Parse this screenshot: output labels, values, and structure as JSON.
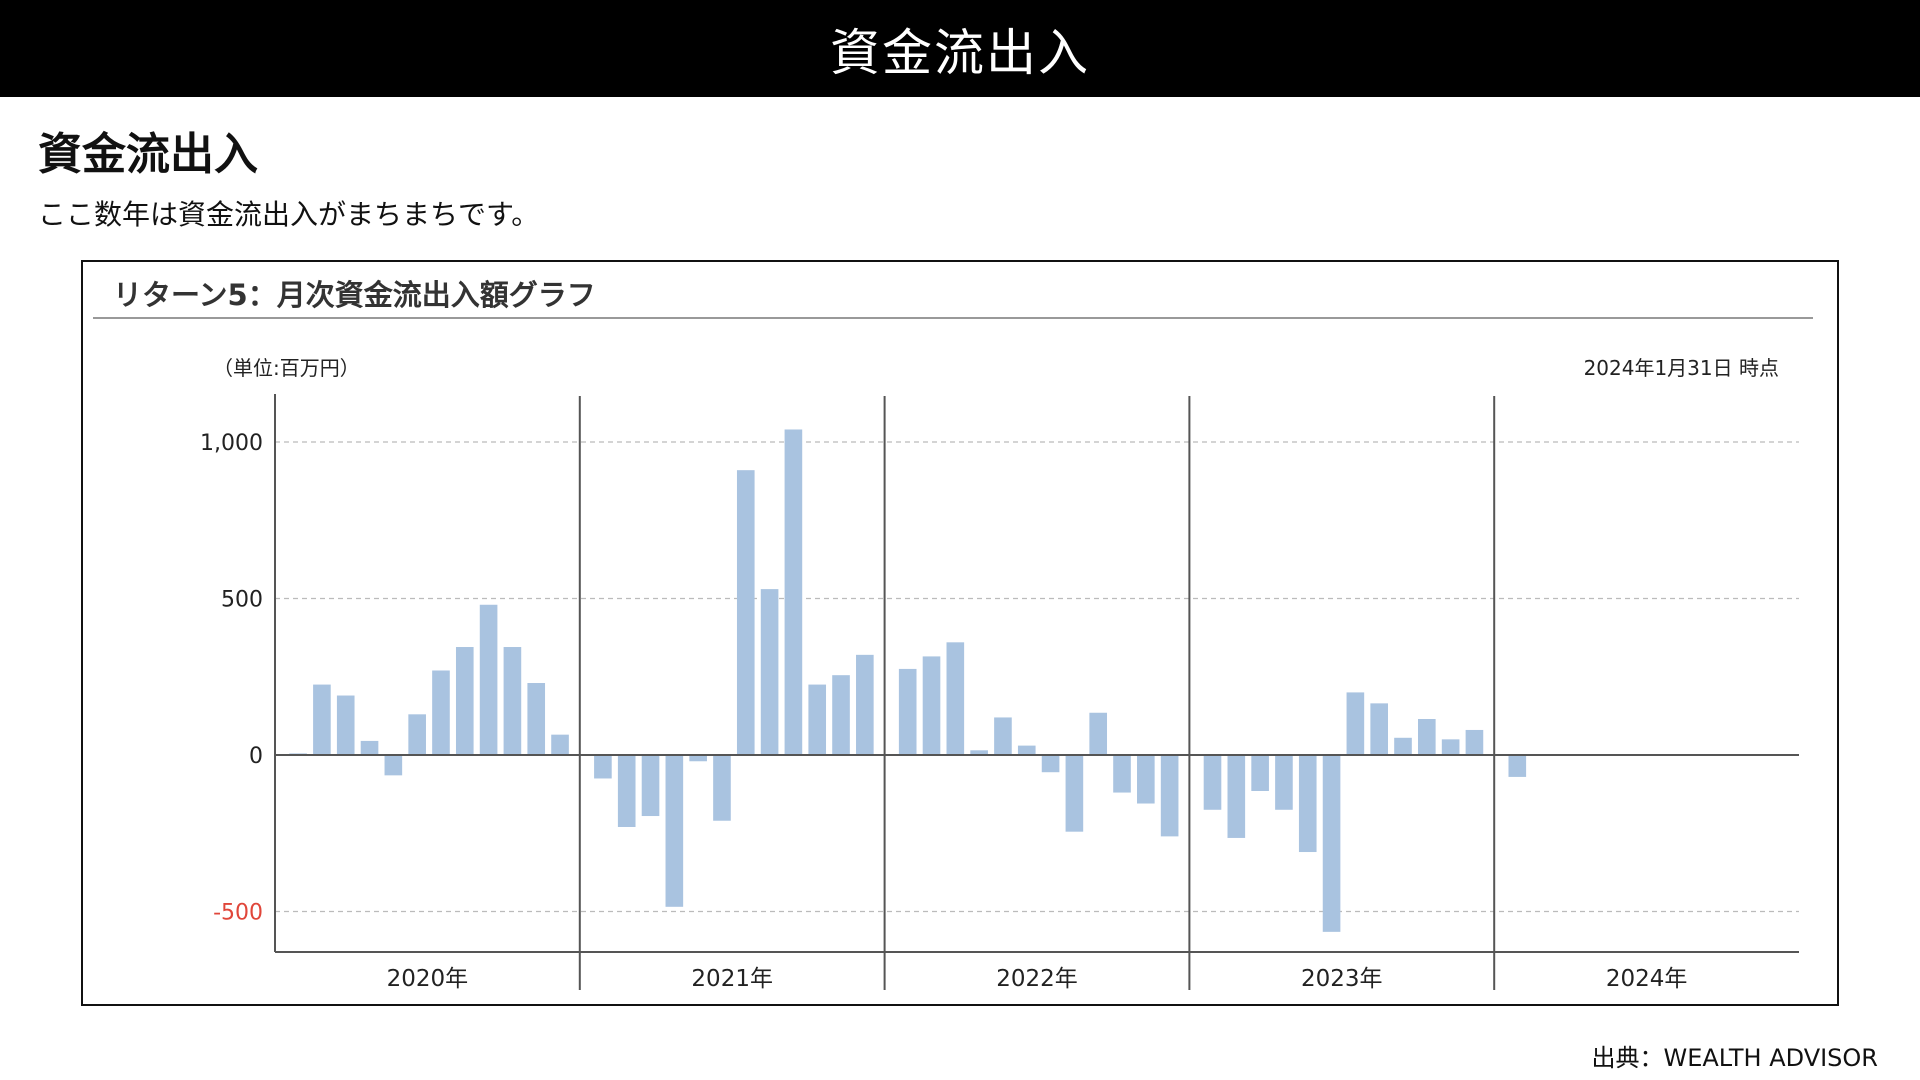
{
  "header": {
    "title": "資金流出入"
  },
  "section": {
    "heading": "資金流出入",
    "description": "ここ数年は資金流出入がまちまちです。"
  },
  "chart_panel": {
    "title": "リターン5：月次資金流出入額グラフ",
    "unit": "（単位:百万円）",
    "as_of": "2024年1月31日 時点"
  },
  "source": "出典：WEALTH ADVISOR",
  "chart_data": {
    "type": "bar",
    "ylim": [
      -630,
      1040
    ],
    "grid": true,
    "yticks": [
      {
        "value": 1000,
        "label": "1,000"
      },
      {
        "value": 500,
        "label": "500"
      },
      {
        "value": 0,
        "label": "0"
      },
      {
        "value": -500,
        "label": "-500"
      }
    ],
    "negative_tick_color": "#e0463a",
    "bar_color": "#a9c3e0",
    "years": [
      {
        "label": "2020年",
        "values": [
          5,
          225,
          190,
          45,
          -65,
          130,
          270,
          345,
          480,
          345,
          230,
          65
        ]
      },
      {
        "label": "2021年",
        "values": [
          -75,
          -230,
          -195,
          -485,
          -20,
          -210,
          910,
          530,
          1040,
          225,
          255,
          320
        ]
      },
      {
        "label": "2022年",
        "values": [
          275,
          315,
          360,
          15,
          120,
          30,
          -55,
          -245,
          135,
          -120,
          -155,
          -260
        ]
      },
      {
        "label": "2023年",
        "values": [
          -175,
          -265,
          -115,
          -175,
          -310,
          -565,
          200,
          165,
          55,
          115,
          50,
          80
        ]
      },
      {
        "label": "2024年",
        "values": [
          -70
        ]
      }
    ]
  }
}
